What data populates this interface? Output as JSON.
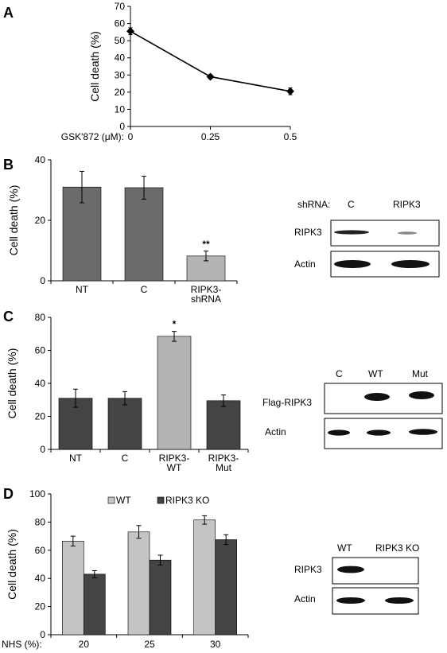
{
  "chart_data": [
    {
      "panel": "A",
      "type": "line",
      "x": [
        0,
        0.25,
        0.5
      ],
      "x_tick_labels": [
        "0",
        "0.25",
        "0.5"
      ],
      "values": [
        55.5,
        29,
        20.5
      ],
      "errors": [
        2,
        1.2,
        2
      ],
      "xlabel": "GSK'872 (μM):",
      "ylabel": "Cell death (%)",
      "ylim": [
        0,
        70
      ],
      "yticks": [
        0,
        10,
        20,
        30,
        40,
        50,
        60,
        70
      ],
      "color": "#000000"
    },
    {
      "panel": "B",
      "type": "bar",
      "categories": [
        [
          "NT"
        ],
        [
          "C"
        ],
        [
          "RIPK3-",
          "shRNA"
        ]
      ],
      "values": [
        31,
        30.8,
        8.2
      ],
      "errors": [
        5.2,
        3.8,
        1.6
      ],
      "colors": [
        "#6b6b6b",
        "#6b6b6b",
        "#b4b4b4"
      ],
      "annotations": [
        "",
        "",
        "**"
      ],
      "ylabel": "Cell death (%)",
      "ylim": [
        0,
        40
      ],
      "yticks": [
        0,
        20,
        40
      ]
    },
    {
      "panel": "C",
      "type": "bar",
      "categories": [
        [
          "NT"
        ],
        [
          "C"
        ],
        [
          "RIPK3-",
          "WT"
        ],
        [
          "RIPK3-",
          "Mut"
        ]
      ],
      "values": [
        31,
        31,
        68.5,
        29.5
      ],
      "errors": [
        5.5,
        4,
        3,
        3.5
      ],
      "colors": [
        "#444444",
        "#444444",
        "#b4b4b4",
        "#444444"
      ],
      "annotations": [
        "",
        "",
        "*",
        ""
      ],
      "ylabel": "Cell death (%)",
      "ylim": [
        0,
        80
      ],
      "yticks": [
        0,
        20,
        40,
        60,
        80
      ]
    },
    {
      "panel": "D",
      "type": "bar",
      "categories": [
        "20",
        "25",
        "30"
      ],
      "series": [
        {
          "name": "WT",
          "values": [
            66.5,
            73,
            81.5
          ],
          "errors": [
            3.5,
            4.5,
            3
          ],
          "color": "#c4c4c4"
        },
        {
          "name": "RIPK3 KO",
          "values": [
            43,
            53,
            67.5
          ],
          "errors": [
            2.5,
            3.5,
            3.5
          ],
          "color": "#444444"
        }
      ],
      "xlabel": "NHS (%):",
      "ylabel": "Cell death (%)",
      "ylim": [
        0,
        100
      ],
      "yticks": [
        0,
        20,
        40,
        60,
        80,
        100
      ],
      "legend": "top"
    }
  ],
  "panels": {
    "A": {
      "letter": "A"
    },
    "B": {
      "letter": "B",
      "blot": {
        "header_label": "shRNA:",
        "lanes": [
          "C",
          "RIPK3"
        ],
        "rows": [
          "RIPK3",
          "Actin"
        ]
      }
    },
    "C": {
      "letter": "C",
      "blot": {
        "lanes": [
          "C",
          "WT",
          "Mut"
        ],
        "rows": [
          "Flag-RIPK3",
          "Actin"
        ]
      }
    },
    "D": {
      "letter": "D",
      "blot": {
        "lanes": [
          "WT",
          "RIPK3 KO"
        ],
        "rows": [
          "RIPK3",
          "Actin"
        ]
      }
    }
  }
}
